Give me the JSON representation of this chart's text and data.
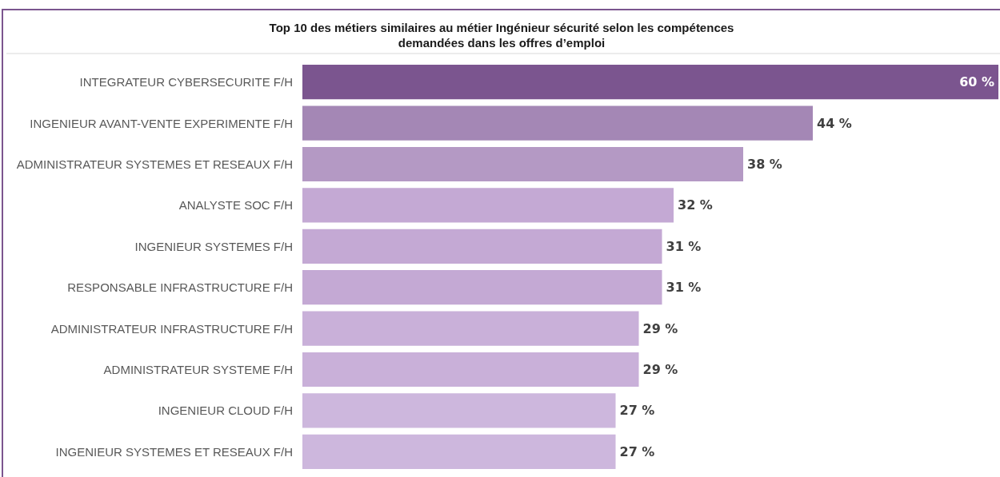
{
  "chart_data": {
    "type": "bar",
    "orientation": "horizontal",
    "title": "Top 10 des métiers similaires au métier Ingénieur sécurité selon les compétences\ndemandées dans les offres d’emploi",
    "categories": [
      "INTEGRATEUR CYBERSECURITE F/H",
      "INGENIEUR AVANT-VENTE EXPERIMENTE F/H",
      "ADMINISTRATEUR SYSTEMES ET RESEAUX F/H",
      "ANALYSTE SOC F/H",
      "INGENIEUR SYSTEMES F/H",
      "RESPONSABLE INFRASTRUCTURE F/H",
      "ADMINISTRATEUR INFRASTRUCTURE F/H",
      "ADMINISTRATEUR SYSTEME F/H",
      "INGENIEUR CLOUD F/H",
      "INGENIEUR SYSTEMES ET RESEAUX F/H"
    ],
    "values": [
      60,
      44,
      38,
      32,
      31,
      31,
      29,
      29,
      27,
      27
    ],
    "value_labels": [
      "60 %",
      "44 %",
      "38 %",
      "32 %",
      "31 %",
      "31 %",
      "29 %",
      "29 %",
      "27 %",
      "27 %"
    ],
    "colors": [
      "#7b558f",
      "#a487b5",
      "#b499c4",
      "#c4a9d4",
      "#c4a9d4",
      "#c4a9d4",
      "#c9b0d9",
      "#c9b0d9",
      "#cdb7dd",
      "#cdb7dd"
    ]
  }
}
